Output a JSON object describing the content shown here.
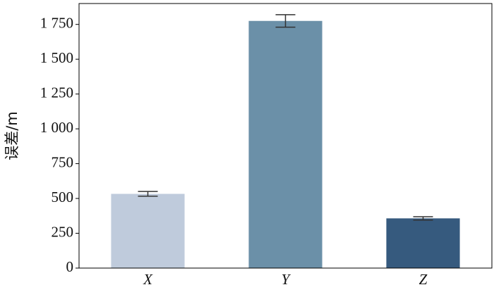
{
  "chart_data": {
    "type": "bar",
    "ylabel": "误差/m",
    "categories": [
      "X",
      "Y",
      "Z"
    ],
    "values": [
      533,
      1775,
      357
    ],
    "errors": [
      17,
      45,
      12
    ],
    "colors": [
      "#bfcbdc",
      "#6b90a8",
      "#365a7e"
    ],
    "ylim": [
      0,
      1900
    ],
    "yticks": [
      0,
      250,
      500,
      750,
      {
        "value": 1000,
        "label": "1 000"
      },
      {
        "value": 1250,
        "label": "1 250"
      },
      {
        "value": 1500,
        "label": "1 500"
      },
      {
        "value": 1750,
        "label": "1 750"
      }
    ]
  }
}
